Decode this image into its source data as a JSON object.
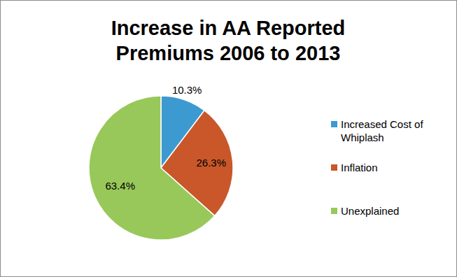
{
  "chart_data": {
    "type": "pie",
    "title": "Increase in AA Reported Premiums 2006 to 2013",
    "categories": [
      "Increased Cost of Whiplash",
      "Inflation",
      "Unexplained"
    ],
    "values": [
      10.3,
      26.3,
      63.4
    ],
    "value_labels": [
      "10.3%",
      "26.3%",
      "63.4%"
    ],
    "colors": [
      "#3d9ad1",
      "#c9572a",
      "#98c85a"
    ],
    "data_labels": true,
    "legend": "right"
  }
}
